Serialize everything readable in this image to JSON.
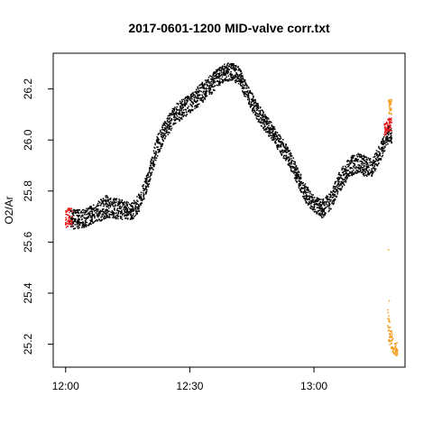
{
  "chart_data": {
    "type": "scatter",
    "title": "2017-0601-1200 MID-valve corr.txt",
    "xlabel": "",
    "ylabel": "O2/Ar",
    "x_unit": "minutes after 12:00",
    "xlim": [
      -3,
      82
    ],
    "ylim": [
      25.11,
      26.34
    ],
    "x_ticks": [
      {
        "value": 0,
        "label": "12:00"
      },
      {
        "value": 30,
        "label": "12:30"
      },
      {
        "value": 60,
        "label": "13:00"
      }
    ],
    "y_ticks": [
      {
        "value": 25.2,
        "label": "25.2"
      },
      {
        "value": 25.4,
        "label": "25.4"
      },
      {
        "value": 25.6,
        "label": "25.6"
      },
      {
        "value": 25.8,
        "label": "25.8"
      },
      {
        "value": 26.0,
        "label": "26.0"
      },
      {
        "value": 26.2,
        "label": "26.2"
      }
    ],
    "grid": false,
    "legend": "none",
    "series": [
      {
        "color": "#000000",
        "trend": [
          {
            "x": 1.0,
            "y": 25.69,
            "spread": 0.08
          },
          {
            "x": 4.0,
            "y": 25.69,
            "spread": 0.07
          },
          {
            "x": 7.0,
            "y": 25.71,
            "spread": 0.08
          },
          {
            "x": 10.0,
            "y": 25.74,
            "spread": 0.09
          },
          {
            "x": 13.0,
            "y": 25.73,
            "spread": 0.08
          },
          {
            "x": 16.0,
            "y": 25.72,
            "spread": 0.07
          },
          {
            "x": 18.0,
            "y": 25.76,
            "spread": 0.07
          },
          {
            "x": 20.0,
            "y": 25.85,
            "spread": 0.07
          },
          {
            "x": 22.0,
            "y": 25.97,
            "spread": 0.08
          },
          {
            "x": 24.0,
            "y": 26.04,
            "spread": 0.08
          },
          {
            "x": 26.0,
            "y": 26.09,
            "spread": 0.08
          },
          {
            "x": 28.0,
            "y": 26.12,
            "spread": 0.08
          },
          {
            "x": 30.0,
            "y": 26.14,
            "spread": 0.07
          },
          {
            "x": 32.0,
            "y": 26.17,
            "spread": 0.08
          },
          {
            "x": 34.0,
            "y": 26.2,
            "spread": 0.08
          },
          {
            "x": 36.0,
            "y": 26.23,
            "spread": 0.08
          },
          {
            "x": 38.0,
            "y": 26.26,
            "spread": 0.07
          },
          {
            "x": 40.0,
            "y": 26.27,
            "spread": 0.07
          },
          {
            "x": 42.0,
            "y": 26.25,
            "spread": 0.07
          },
          {
            "x": 44.0,
            "y": 26.18,
            "spread": 0.07
          },
          {
            "x": 46.0,
            "y": 26.12,
            "spread": 0.07
          },
          {
            "x": 48.0,
            "y": 26.07,
            "spread": 0.07
          },
          {
            "x": 50.0,
            "y": 26.03,
            "spread": 0.07
          },
          {
            "x": 52.0,
            "y": 25.98,
            "spread": 0.07
          },
          {
            "x": 54.0,
            "y": 25.93,
            "spread": 0.07
          },
          {
            "x": 56.0,
            "y": 25.86,
            "spread": 0.07
          },
          {
            "x": 58.0,
            "y": 25.79,
            "spread": 0.07
          },
          {
            "x": 60.0,
            "y": 25.75,
            "spread": 0.07
          },
          {
            "x": 62.0,
            "y": 25.73,
            "spread": 0.07
          },
          {
            "x": 64.0,
            "y": 25.76,
            "spread": 0.07
          },
          {
            "x": 66.0,
            "y": 25.83,
            "spread": 0.08
          },
          {
            "x": 68.0,
            "y": 25.88,
            "spread": 0.08
          },
          {
            "x": 70.0,
            "y": 25.91,
            "spread": 0.08
          },
          {
            "x": 72.0,
            "y": 25.9,
            "spread": 0.08
          },
          {
            "x": 74.0,
            "y": 25.89,
            "spread": 0.07
          },
          {
            "x": 76.0,
            "y": 25.95,
            "spread": 0.07
          },
          {
            "x": 78.0,
            "y": 26.02,
            "spread": 0.07
          }
        ]
      },
      {
        "color": "#e8181a",
        "trend": [
          {
            "x": 0.0,
            "y": 25.69,
            "spread": 0.07
          },
          {
            "x": 0.8,
            "y": 25.7,
            "spread": 0.07
          },
          {
            "x": 77.0,
            "y": 26.04,
            "spread": 0.05
          },
          {
            "x": 78.0,
            "y": 26.06,
            "spread": 0.05
          }
        ]
      },
      {
        "color": "#f59c1a",
        "trend": [
          {
            "x": 77.8,
            "y": 25.28,
            "spread": 0.12
          },
          {
            "x": 78.6,
            "y": 25.22,
            "spread": 0.08
          },
          {
            "x": 79.4,
            "y": 25.18,
            "spread": 0.05
          },
          {
            "x": 78.0,
            "y": 26.13,
            "spread": 0.06
          }
        ],
        "outliers": [
          {
            "x": 78.0,
            "y": 25.57
          },
          {
            "x": 78.2,
            "y": 25.37
          }
        ]
      }
    ]
  }
}
